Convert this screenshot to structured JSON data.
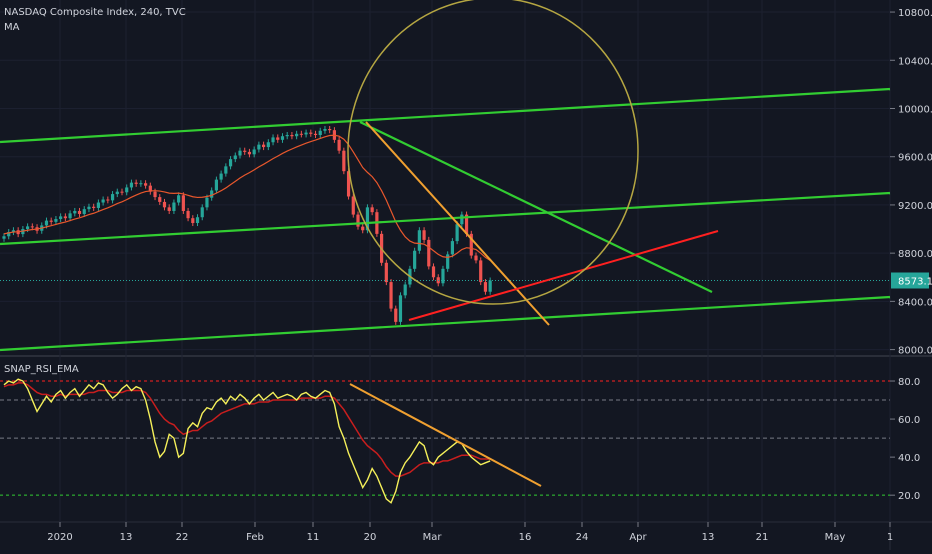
{
  "header": {
    "symbol_line": "NASDAQ Composite Index, 240, TVC",
    "ma_label": "MA",
    "rsi_label": "SNAP_RSI_EMA"
  },
  "colors": {
    "background": "#131722",
    "up": "#26a69a",
    "down": "#ef5350",
    "ma": "#e8572c",
    "green_channel": "#32cd32",
    "orange_trend": "#f0a030",
    "red_trend": "#ff2020",
    "ellipse": "#b5a642",
    "rsi": "#f5f05a",
    "rsi_ema": "#c81e1e",
    "price_line": "#26a69a",
    "last_price_bg": "#26a69a"
  },
  "chart_data": [
    {
      "type": "candlestick",
      "title": "NASDAQ Composite Index, 240, TVC",
      "x_ticks": [
        "2020",
        "13",
        "22",
        "Feb",
        "11",
        "20",
        "Mar",
        "16",
        "24",
        "Apr",
        "13",
        "21",
        "May",
        "1"
      ],
      "y_ticks": [
        "8000.0",
        "8400.0",
        "8800.0",
        "9200.0",
        "9600.0",
        "10000.0",
        "10400.0",
        "10800.0"
      ],
      "ylim": [
        7980,
        10900
      ],
      "last_price": "8573.1",
      "ma_label": "MA",
      "bars": 120,
      "series": [
        {
          "name": "close",
          "values": [
            8940,
            8975,
            8990,
            8958,
            9000,
            9022,
            9015,
            8986,
            9030,
            9070,
            9060,
            9083,
            9105,
            9090,
            9130,
            9150,
            9125,
            9165,
            9185,
            9175,
            9220,
            9245,
            9238,
            9290,
            9310,
            9305,
            9345,
            9385,
            9375,
            9380,
            9360,
            9310,
            9265,
            9225,
            9180,
            9150,
            9220,
            9280,
            9150,
            9090,
            9050,
            9098,
            9180,
            9260,
            9320,
            9410,
            9460,
            9520,
            9580,
            9610,
            9650,
            9640,
            9620,
            9660,
            9700,
            9680,
            9720,
            9760,
            9740,
            9770,
            9780,
            9770,
            9790,
            9785,
            9800,
            9790,
            9780,
            9815,
            9830,
            9820,
            9740,
            9650,
            9480,
            9270,
            9120,
            9020,
            8990,
            9180,
            9140,
            8960,
            8720,
            8560,
            8340,
            8230,
            8450,
            8540,
            8670,
            8820,
            8990,
            8910,
            8690,
            8600,
            8550,
            8670,
            8790,
            8900,
            9040,
            9120,
            8960,
            8780,
            8740,
            8560,
            8480,
            8573.1
          ]
        },
        {
          "name": "MA",
          "values": [
            8960,
            8968,
            8975,
            8978,
            8983,
            8990,
            8996,
            9000,
            9008,
            9018,
            9028,
            9038,
            9049,
            9058,
            9070,
            9083,
            9093,
            9106,
            9120,
            9131,
            9146,
            9162,
            9176,
            9193,
            9211,
            9226,
            9244,
            9264,
            9282,
            9298,
            9311,
            9316,
            9318,
            9315,
            9308,
            9298,
            9296,
            9298,
            9291,
            9280,
            9268,
            9262,
            9264,
            9270,
            9280,
            9298,
            9318,
            9341,
            9368,
            9395,
            9423,
            9447,
            9468,
            9491,
            9516,
            9537,
            9560,
            9584,
            9605,
            9627,
            9647,
            9664,
            9681,
            9697,
            9712,
            9726,
            9738,
            9752,
            9765,
            9776,
            9778,
            9770,
            9745,
            9700,
            9640,
            9575,
            9510,
            9470,
            9435,
            9385,
            9318,
            9240,
            9150,
            9060,
            8990,
            8935,
            8900,
            8883,
            8880,
            8875,
            8850,
            8820,
            8790,
            8770,
            8765,
            8775,
            8800,
            8830,
            8845,
            8840,
            8830,
            8800,
            8765,
            8740
          ]
        }
      ]
    },
    {
      "type": "line",
      "title": "SNAP_RSI_EMA",
      "y_ticks": [
        "20.0",
        "40.0",
        "60.0",
        "80.0"
      ],
      "ylim": [
        8,
        90
      ],
      "levels": [
        20,
        50,
        70,
        80
      ],
      "series": [
        {
          "name": "RSI",
          "values": [
            78,
            80,
            79,
            81,
            80,
            76,
            70,
            64,
            68,
            72,
            69,
            73,
            75,
            71,
            74,
            76,
            72,
            75,
            78,
            76,
            79,
            78,
            74,
            71,
            73,
            76,
            78,
            75,
            77,
            76,
            70,
            60,
            48,
            40,
            43,
            52,
            50,
            40,
            42,
            55,
            58,
            56,
            63,
            66,
            65,
            69,
            71,
            68,
            72,
            70,
            73,
            71,
            68,
            71,
            73,
            70,
            72,
            74,
            71,
            72,
            73,
            72,
            70,
            73,
            74,
            72,
            71,
            73,
            75,
            74,
            68,
            56,
            50,
            42,
            36,
            30,
            24,
            28,
            34,
            30,
            24,
            18,
            16,
            22,
            32,
            37,
            40,
            44,
            48,
            46,
            38,
            36,
            40,
            42,
            44,
            46,
            48,
            47,
            43,
            40,
            38,
            36,
            37,
            38
          ]
        },
        {
          "name": "EMA",
          "values": [
            77,
            78,
            78,
            79,
            79,
            78,
            76,
            74,
            73,
            73,
            72,
            72,
            73,
            72,
            73,
            73,
            73,
            73,
            74,
            74,
            75,
            75,
            75,
            74,
            74,
            74,
            75,
            75,
            75,
            75,
            74,
            71,
            67,
            63,
            60,
            58,
            57,
            54,
            52,
            53,
            54,
            54,
            56,
            58,
            59,
            61,
            63,
            64,
            65,
            66,
            67,
            68,
            68,
            68,
            69,
            69,
            69,
            70,
            70,
            70,
            70,
            70,
            70,
            71,
            71,
            71,
            71,
            71,
            72,
            72,
            71,
            68,
            65,
            61,
            57,
            53,
            49,
            46,
            44,
            42,
            39,
            35,
            32,
            30,
            30,
            31,
            32,
            34,
            36,
            37,
            37,
            37,
            37,
            38,
            38,
            39,
            40,
            41,
            41,
            41,
            40,
            39,
            39,
            39
          ]
        }
      ]
    }
  ]
}
